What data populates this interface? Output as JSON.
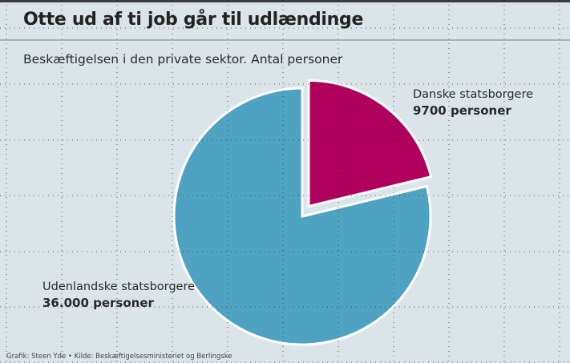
{
  "title": "Otte ud af ti job går til udlændinge",
  "subtitle": "Beskæftigelsen i den private sektor. Antal personer",
  "footer": "Grafik: Steen Yde  •  Kilde: Beskæftigelsesministeriet og Berlingske",
  "chart_data": {
    "type": "pie",
    "title": "Otte ud af ti job går til udlændinge",
    "subtitle": "Beskæftigelsen i den private sektor. Antal personer",
    "slices": [
      {
        "name": "Danske statsborgere",
        "value": 9700,
        "label": "9700 personer",
        "color": "#b0005e",
        "exploded": true
      },
      {
        "name": "Udenlandske statsborgere",
        "value": 36000,
        "label": "36.000 personer",
        "color": "#4ea3c3",
        "exploded": false
      }
    ],
    "start_angle": "12 o'clock",
    "direction": "clockwise",
    "background": "#dbe5e9"
  }
}
